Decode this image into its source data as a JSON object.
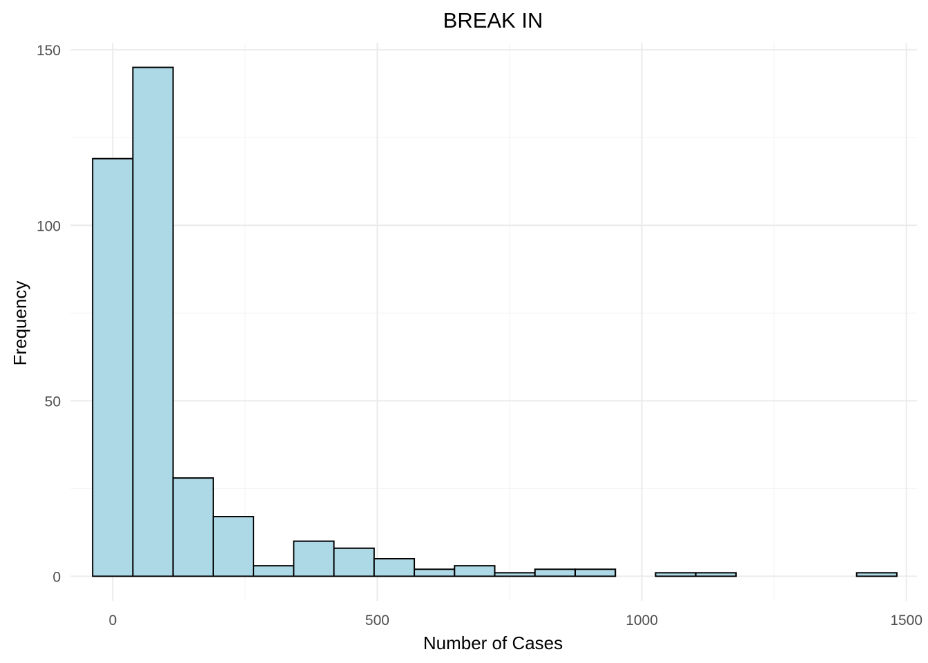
{
  "chart_data": {
    "type": "bar",
    "title": "BREAK IN",
    "xlabel": "Number of Cases",
    "ylabel": "Frequency",
    "xlim": [
      -80,
      1520
    ],
    "ylim": [
      -7,
      150
    ],
    "x_ticks": [
      0,
      500,
      1000,
      1500
    ],
    "y_ticks": [
      0,
      50,
      100,
      150
    ],
    "grid": true,
    "bar_fill": "#add8e6",
    "bar_outline": "#000000",
    "bins": [
      {
        "x0": -38,
        "x1": 38,
        "count": 119
      },
      {
        "x0": 38,
        "x1": 114,
        "count": 145
      },
      {
        "x0": 114,
        "x1": 190,
        "count": 28
      },
      {
        "x0": 190,
        "x1": 266,
        "count": 17
      },
      {
        "x0": 266,
        "x1": 342,
        "count": 3
      },
      {
        "x0": 342,
        "x1": 418,
        "count": 10
      },
      {
        "x0": 418,
        "x1": 494,
        "count": 8
      },
      {
        "x0": 494,
        "x1": 570,
        "count": 5
      },
      {
        "x0": 570,
        "x1": 646,
        "count": 2
      },
      {
        "x0": 646,
        "x1": 722,
        "count": 3
      },
      {
        "x0": 722,
        "x1": 798,
        "count": 1
      },
      {
        "x0": 798,
        "x1": 874,
        "count": 2
      },
      {
        "x0": 874,
        "x1": 950,
        "count": 2
      },
      {
        "x0": 950,
        "x1": 1026,
        "count": 0
      },
      {
        "x0": 1026,
        "x1": 1102,
        "count": 1
      },
      {
        "x0": 1102,
        "x1": 1178,
        "count": 1
      },
      {
        "x0": 1178,
        "x1": 1254,
        "count": 0
      },
      {
        "x0": 1254,
        "x1": 1330,
        "count": 0
      },
      {
        "x0": 1330,
        "x1": 1406,
        "count": 0
      },
      {
        "x0": 1406,
        "x1": 1482,
        "count": 1
      }
    ]
  }
}
